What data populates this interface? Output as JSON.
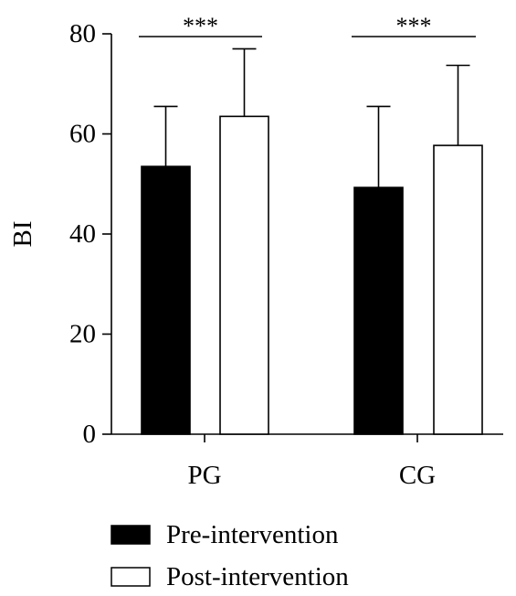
{
  "chart_data": {
    "type": "bar",
    "title": "",
    "xlabel": "",
    "ylabel": "BI",
    "ylim": [
      0,
      80
    ],
    "yticks": [
      "0",
      "20",
      "40",
      "60",
      "80"
    ],
    "categories": [
      "PG",
      "CG"
    ],
    "series": [
      {
        "name": "Pre-intervention",
        "color": "#000000",
        "fill": "solid",
        "values": [
          53.5,
          49.3
        ],
        "error_upper": [
          65.5,
          65.5
        ]
      },
      {
        "name": "Post-intervention",
        "color": "#ffffff",
        "fill": "hollow",
        "values": [
          63.5,
          57.7
        ],
        "error_upper": [
          77.0,
          73.7
        ]
      }
    ],
    "significance": [
      {
        "category": "PG",
        "label": "***"
      },
      {
        "category": "CG",
        "label": "***"
      }
    ],
    "grid": false,
    "legend": "bottom"
  }
}
